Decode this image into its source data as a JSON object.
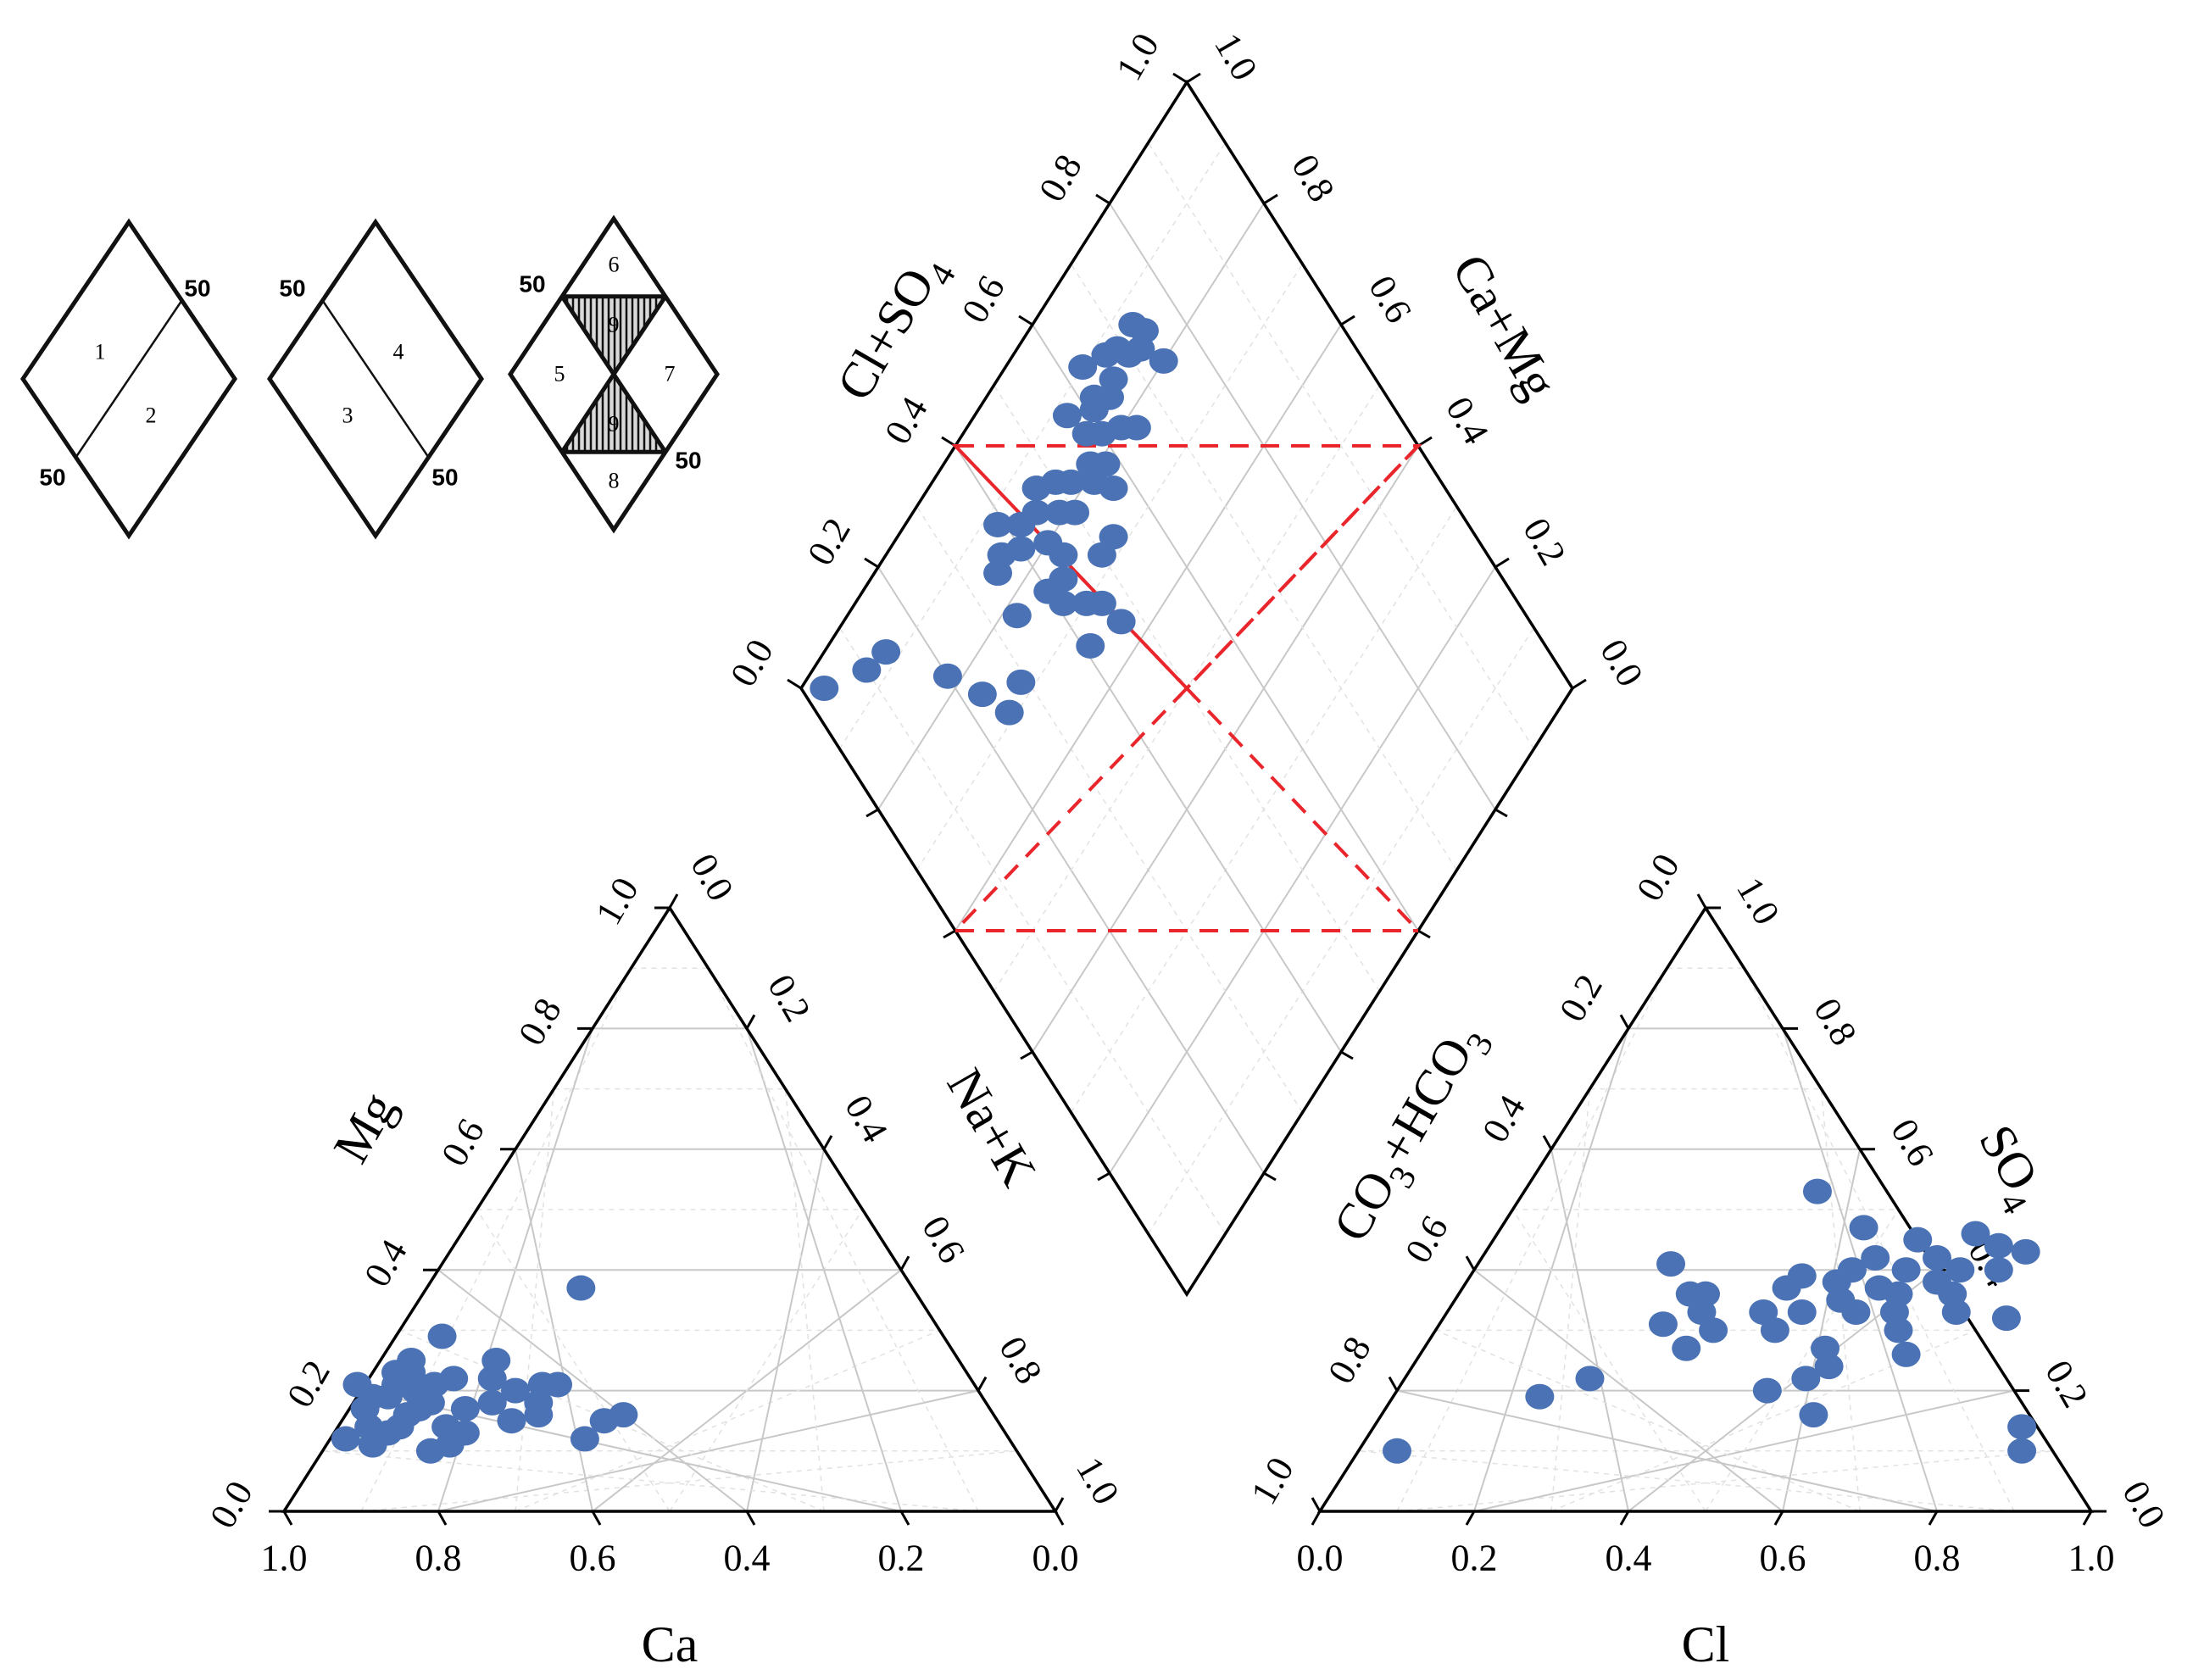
{
  "chart_data": {
    "type": "scatter",
    "subtype": "piper-diagram",
    "marker_color": "#4a72b5",
    "region_color": "#e8262b",
    "cation_triangle": {
      "axis_bottom_label": "Ca",
      "axis_left_label": "Mg",
      "axis_right_label": "Na+K",
      "bottom_ticks": [
        "1.0",
        "0.8",
        "0.6",
        "0.4",
        "0.2",
        "0.0"
      ],
      "left_ticks": [
        "0.0",
        "0.2",
        "0.4",
        "0.6",
        "0.8",
        "1.0"
      ],
      "right_ticks": [
        "0.0",
        "0.2",
        "0.4",
        "0.6",
        "0.8",
        "1.0"
      ],
      "points": [
        {
          "ca": 0.86,
          "mg": 0.12
        },
        {
          "ca": 0.83,
          "mg": 0.11
        },
        {
          "ca": 0.82,
          "mg": 0.14
        },
        {
          "ca": 0.8,
          "mg": 0.13
        },
        {
          "ca": 0.78,
          "mg": 0.14
        },
        {
          "ca": 0.81,
          "mg": 0.17
        },
        {
          "ca": 0.79,
          "mg": 0.19
        },
        {
          "ca": 0.8,
          "mg": 0.21
        },
        {
          "ca": 0.77,
          "mg": 0.19
        },
        {
          "ca": 0.76,
          "mg": 0.16
        },
        {
          "ca": 0.74,
          "mg": 0.17
        },
        {
          "ca": 0.73,
          "mg": 0.2
        },
        {
          "ca": 0.72,
          "mg": 0.23
        },
        {
          "ca": 0.74,
          "mg": 0.23
        },
        {
          "ca": 0.71,
          "mg": 0.25
        },
        {
          "ca": 0.75,
          "mg": 0.21
        },
        {
          "ca": 0.72,
          "mg": 0.18
        },
        {
          "ca": 0.7,
          "mg": 0.21
        },
        {
          "ca": 0.72,
          "mg": 0.14
        },
        {
          "ca": 0.7,
          "mg": 0.13
        },
        {
          "ca": 0.73,
          "mg": 0.11
        },
        {
          "ca": 0.76,
          "mg": 0.1
        },
        {
          "ca": 0.68,
          "mg": 0.17
        },
        {
          "ca": 0.67,
          "mg": 0.22
        },
        {
          "ca": 0.65,
          "mg": 0.29
        },
        {
          "ca": 0.64,
          "mg": 0.18
        },
        {
          "ca": 0.63,
          "mg": 0.15
        },
        {
          "ca": 0.62,
          "mg": 0.22
        },
        {
          "ca": 0.6,
          "mg": 0.2
        },
        {
          "ca": 0.59,
          "mg": 0.16
        },
        {
          "ca": 0.6,
          "mg": 0.25
        },
        {
          "ca": 0.58,
          "mg": 0.18
        },
        {
          "ca": 0.56,
          "mg": 0.21
        },
        {
          "ca": 0.54,
          "mg": 0.21
        },
        {
          "ca": 0.51,
          "mg": 0.15
        },
        {
          "ca": 0.48,
          "mg": 0.16
        },
        {
          "ca": 0.55,
          "mg": 0.12
        },
        {
          "ca": 0.43,
          "mg": 0.37
        }
      ]
    },
    "anion_triangle": {
      "axis_bottom_label": "Cl",
      "axis_left_label": "CO3+HCO3",
      "axis_right_label": "SO4",
      "bottom_ticks": [
        "0.0",
        "0.2",
        "0.4",
        "0.6",
        "0.8",
        "1.0"
      ],
      "left_ticks": [
        "1.0",
        "0.8",
        "0.6",
        "0.4",
        "0.2",
        "0.0"
      ],
      "right_ticks": [
        "0.0",
        "0.2",
        "0.4",
        "0.6",
        "0.8",
        "1.0"
      ],
      "points": [
        {
          "cl": 0.05,
          "so4": 0.1
        },
        {
          "cl": 0.19,
          "so4": 0.19
        },
        {
          "cl": 0.24,
          "so4": 0.22
        },
        {
          "cl": 0.25,
          "so4": 0.41
        },
        {
          "cl": 0.29,
          "so4": 0.31
        },
        {
          "cl": 0.3,
          "so4": 0.36
        },
        {
          "cl": 0.32,
          "so4": 0.36
        },
        {
          "cl": 0.33,
          "so4": 0.33
        },
        {
          "cl": 0.34,
          "so4": 0.27
        },
        {
          "cl": 0.36,
          "so4": 0.3
        },
        {
          "cl": 0.38,
          "so4": 0.53
        },
        {
          "cl": 0.41,
          "so4": 0.33
        },
        {
          "cl": 0.42,
          "so4": 0.37
        },
        {
          "cl": 0.43,
          "so4": 0.39
        },
        {
          "cl": 0.44,
          "so4": 0.3
        },
        {
          "cl": 0.46,
          "so4": 0.33
        },
        {
          "cl": 0.47,
          "so4": 0.47
        },
        {
          "cl": 0.48,
          "so4": 0.38
        },
        {
          "cl": 0.49,
          "so4": 0.4
        },
        {
          "cl": 0.5,
          "so4": 0.35
        },
        {
          "cl": 0.51,
          "so4": 0.42
        },
        {
          "cl": 0.52,
          "so4": 0.27
        },
        {
          "cl": 0.53,
          "so4": 0.33
        },
        {
          "cl": 0.54,
          "so4": 0.37
        },
        {
          "cl": 0.55,
          "so4": 0.45
        },
        {
          "cl": 0.56,
          "so4": 0.4
        },
        {
          "cl": 0.57,
          "so4": 0.36
        },
        {
          "cl": 0.58,
          "so4": 0.33
        },
        {
          "cl": 0.59,
          "so4": 0.42
        },
        {
          "cl": 0.6,
          "so4": 0.3
        },
        {
          "cl": 0.61,
          "so4": 0.38
        },
        {
          "cl": 0.62,
          "so4": 0.46
        },
        {
          "cl": 0.63,
          "so4": 0.4
        },
        {
          "cl": 0.64,
          "so4": 0.36
        },
        {
          "cl": 0.66,
          "so4": 0.44
        },
        {
          "cl": 0.68,
          "so4": 0.4
        },
        {
          "cl": 0.7,
          "so4": 0.43
        },
        {
          "cl": 0.48,
          "so4": 0.2
        },
        {
          "cl": 0.52,
          "so4": 0.22
        },
        {
          "cl": 0.56,
          "so4": 0.16
        },
        {
          "cl": 0.63,
          "so4": 0.26
        },
        {
          "cl": 0.66,
          "so4": 0.33
        },
        {
          "cl": 0.73,
          "so4": 0.32
        },
        {
          "cl": 0.54,
          "so4": 0.24
        },
        {
          "cl": 0.84,
          "so4": 0.14
        },
        {
          "cl": 0.86,
          "so4": 0.1
        }
      ]
    },
    "diamond": {
      "axis_left_label": "Cl+SO4",
      "axis_right_label": "Ca+Mg",
      "left_ticks": [
        "0.0",
        "0.2",
        "0.4",
        "0.6",
        "0.8",
        "1.0"
      ],
      "right_ticks": [
        "1.0",
        "0.8",
        "0.6",
        "0.4",
        "0.2",
        "0.0"
      ],
      "points": [
        {
          "a": 0.74,
          "c": 0.85
        },
        {
          "a": 0.73,
          "c": 0.87
        },
        {
          "a": 0.72,
          "c": 0.84
        },
        {
          "a": 0.74,
          "c": 0.8
        },
        {
          "a": 0.69,
          "c": 0.87
        },
        {
          "a": 0.7,
          "c": 0.85
        },
        {
          "a": 0.67,
          "c": 0.88
        },
        {
          "a": 0.66,
          "c": 0.85
        },
        {
          "a": 0.64,
          "c": 0.84
        },
        {
          "a": 0.62,
          "c": 0.86
        },
        {
          "a": 0.61,
          "c": 0.85
        },
        {
          "a": 0.6,
          "c": 0.82
        },
        {
          "a": 0.63,
          "c": 0.8
        },
        {
          "a": 0.65,
          "c": 0.78
        },
        {
          "a": 0.58,
          "c": 0.84
        },
        {
          "a": 0.57,
          "c": 0.88
        },
        {
          "a": 0.56,
          "c": 0.81
        },
        {
          "a": 0.55,
          "c": 0.79
        },
        {
          "a": 0.57,
          "c": 0.76
        },
        {
          "a": 0.52,
          "c": 0.82
        },
        {
          "a": 0.5,
          "c": 0.84
        },
        {
          "a": 0.5,
          "c": 0.79
        },
        {
          "a": 0.48,
          "c": 0.81
        },
        {
          "a": 0.47,
          "c": 0.86
        },
        {
          "a": 0.45,
          "c": 0.84
        },
        {
          "a": 0.44,
          "c": 0.8
        },
        {
          "a": 0.42,
          "c": 0.85
        },
        {
          "a": 0.4,
          "c": 0.83
        },
        {
          "a": 0.39,
          "c": 0.88
        },
        {
          "a": 0.37,
          "c": 0.85
        },
        {
          "a": 0.35,
          "c": 0.84
        },
        {
          "a": 0.45,
          "c": 0.77
        },
        {
          "a": 0.43,
          "c": 0.75
        },
        {
          "a": 0.41,
          "c": 0.73
        },
        {
          "a": 0.4,
          "c": 0.76
        },
        {
          "a": 0.53,
          "c": 0.72
        },
        {
          "a": 0.5,
          "c": 0.72
        },
        {
          "a": 0.44,
          "c": 0.7
        },
        {
          "a": 0.41,
          "c": 0.66
        },
        {
          "a": 0.34,
          "c": 0.78
        },
        {
          "a": 0.29,
          "c": 0.72
        },
        {
          "a": 0.25,
          "c": 0.71
        },
        {
          "a": 0.23,
          "c": 0.76
        },
        {
          "a": 0.2,
          "c": 0.82
        },
        {
          "a": 0.14,
          "c": 0.92
        },
        {
          "a": 0.1,
          "c": 0.93
        },
        {
          "a": 0.03,
          "c": 0.97
        },
        {
          "a": 0.47,
          "c": 0.64
        },
        {
          "a": 0.46,
          "c": 0.68
        },
        {
          "a": 0.63,
          "c": 0.9
        },
        {
          "a": 0.58,
          "c": 0.79
        }
      ]
    },
    "classification_key": {
      "diamond_1": {
        "labels": [
          "1",
          "2"
        ],
        "marks": [
          "50",
          "50"
        ]
      },
      "diamond_2": {
        "labels": [
          "4",
          "3"
        ],
        "marks": [
          "50",
          "50"
        ]
      },
      "diamond_3": {
        "labels": [
          "6",
          "9",
          "5",
          "7",
          "9",
          "8"
        ],
        "marks": [
          "50",
          "50"
        ]
      }
    }
  }
}
